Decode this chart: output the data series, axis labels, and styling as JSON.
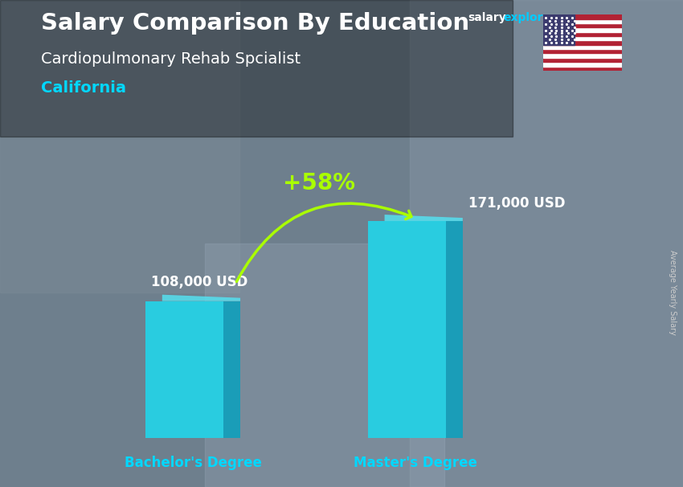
{
  "title_main": "Salary Comparison By Education",
  "title_sub": "Cardiopulmonary Rehab Spcialist",
  "location": "California",
  "ylabel": "Average Yearly Salary",
  "categories": [
    "Bachelor's Degree",
    "Master's Degree"
  ],
  "values": [
    108000,
    171000
  ],
  "value_labels": [
    "108,000 USD",
    "171,000 USD"
  ],
  "pct_change": "+58%",
  "bar_color_front": "#29cce0",
  "bar_color_side": "#1a9db8",
  "bar_color_top": "#55e0f0",
  "title_color": "#ffffff",
  "subtitle_color": "#ffffff",
  "location_color": "#00d8ff",
  "value_label_color": "#ffffff",
  "category_label_color": "#00d8ff",
  "pct_color": "#aaff00",
  "arrow_color": "#aaff00",
  "bg_color": "#4a5a6a",
  "ylim": [
    0,
    230000
  ],
  "bar_width": 0.13,
  "x_positions": [
    0.25,
    0.62
  ],
  "xlim": [
    0.0,
    1.0
  ],
  "watermark_salary_color": "#ffffff",
  "watermark_explorer_color": "#00ccff",
  "watermark_dot_com_color": "#ffffff"
}
